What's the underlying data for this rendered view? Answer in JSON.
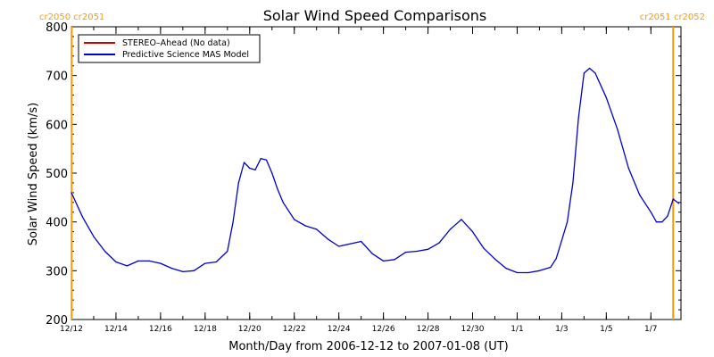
{
  "chart_data": {
    "type": "line",
    "title": "Solar Wind Speed Comparisons",
    "xlabel": "Month/Day from 2006-12-12 to 2007-01-08 (UT)",
    "ylabel": "Solar Wind Speed (km/s)",
    "ylim": [
      200,
      800
    ],
    "yticks": [
      200,
      300,
      400,
      500,
      600,
      700,
      800
    ],
    "xlim": [
      "2006-12-12",
      "2007-01-08"
    ],
    "xticks": [
      {
        "date": "2006-12-12",
        "label": "12/12"
      },
      {
        "date": "2006-12-14",
        "label": "12/14"
      },
      {
        "date": "2006-12-16",
        "label": "12/16"
      },
      {
        "date": "2006-12-18",
        "label": "12/18"
      },
      {
        "date": "2006-12-20",
        "label": "12/20"
      },
      {
        "date": "2006-12-22",
        "label": "12/22"
      },
      {
        "date": "2006-12-24",
        "label": "12/24"
      },
      {
        "date": "2006-12-26",
        "label": "12/26"
      },
      {
        "date": "2006-12-28",
        "label": "12/28"
      },
      {
        "date": "2006-12-30",
        "label": "12/30"
      },
      {
        "date": "2007-01-01",
        "label": "1/1"
      },
      {
        "date": "2007-01-03",
        "label": "1/3"
      },
      {
        "date": "2007-01-05",
        "label": "1/5"
      },
      {
        "date": "2007-01-07",
        "label": "1/7"
      }
    ],
    "grid": false,
    "legend_position": "top-left",
    "carrington_markers": [
      {
        "date": "2006-12-12 00:18",
        "label": "cr2050 cr2051",
        "label_side": "top-left",
        "color": "#ff9900"
      },
      {
        "date": "2007-01-08 00:00",
        "label": "cr2051 cr2052",
        "label_side": "top-right",
        "color": "#ff9900"
      }
    ],
    "series": [
      {
        "name": "STEREO–Ahead (No data)",
        "color": "#cc0000",
        "x": [],
        "y": []
      },
      {
        "name": "Predictive Science MAS Model",
        "color": "#0000cc",
        "x": [
          "2006-12-12 00:00",
          "2006-12-12 12:00",
          "2006-12-13 00:00",
          "2006-12-13 12:00",
          "2006-12-14 00:00",
          "2006-12-14 12:00",
          "2006-12-15 00:00",
          "2006-12-15 12:00",
          "2006-12-16 00:00",
          "2006-12-16 12:00",
          "2006-12-17 00:00",
          "2006-12-17 12:00",
          "2006-12-18 00:00",
          "2006-12-18 12:00",
          "2006-12-19 00:00",
          "2006-12-19 06:00",
          "2006-12-19 12:00",
          "2006-12-19 18:00",
          "2006-12-20 00:00",
          "2006-12-20 06:00",
          "2006-12-20 12:00",
          "2006-12-20 18:00",
          "2006-12-21 00:00",
          "2006-12-21 06:00",
          "2006-12-21 12:00",
          "2006-12-22 00:00",
          "2006-12-22 12:00",
          "2006-12-23 00:00",
          "2006-12-23 12:00",
          "2006-12-24 00:00",
          "2006-12-24 12:00",
          "2006-12-25 00:00",
          "2006-12-25 12:00",
          "2006-12-26 00:00",
          "2006-12-26 12:00",
          "2006-12-27 00:00",
          "2006-12-27 12:00",
          "2006-12-28 00:00",
          "2006-12-28 12:00",
          "2006-12-29 00:00",
          "2006-12-29 12:00",
          "2006-12-30 00:00",
          "2006-12-30 12:00",
          "2006-12-31 00:00",
          "2006-12-31 12:00",
          "2007-01-01 00:00",
          "2007-01-01 12:00",
          "2007-01-02 00:00",
          "2007-01-02 12:00",
          "2007-01-02 18:00",
          "2007-01-03 00:00",
          "2007-01-03 06:00",
          "2007-01-03 12:00",
          "2007-01-03 18:00",
          "2007-01-04 00:00",
          "2007-01-04 06:00",
          "2007-01-04 12:00",
          "2007-01-05 00:00",
          "2007-01-05 12:00",
          "2007-01-06 00:00",
          "2007-01-06 12:00",
          "2007-01-07 00:00",
          "2007-01-07 06:00",
          "2007-01-07 12:00",
          "2007-01-07 18:00",
          "2007-01-08 00:00",
          "2007-01-08 06:00"
        ],
        "y": [
          460,
          410,
          370,
          340,
          318,
          310,
          320,
          320,
          315,
          305,
          298,
          300,
          315,
          318,
          340,
          400,
          480,
          522,
          510,
          507,
          530,
          527,
          500,
          467,
          440,
          405,
          392,
          385,
          365,
          350,
          355,
          360,
          335,
          320,
          323,
          338,
          340,
          344,
          357,
          385,
          405,
          380,
          346,
          324,
          305,
          296,
          296,
          300,
          307,
          325,
          362,
          400,
          480,
          612,
          705,
          715,
          705,
          655,
          590,
          510,
          455,
          420,
          400,
          400,
          412,
          447,
          438
        ]
      }
    ]
  }
}
